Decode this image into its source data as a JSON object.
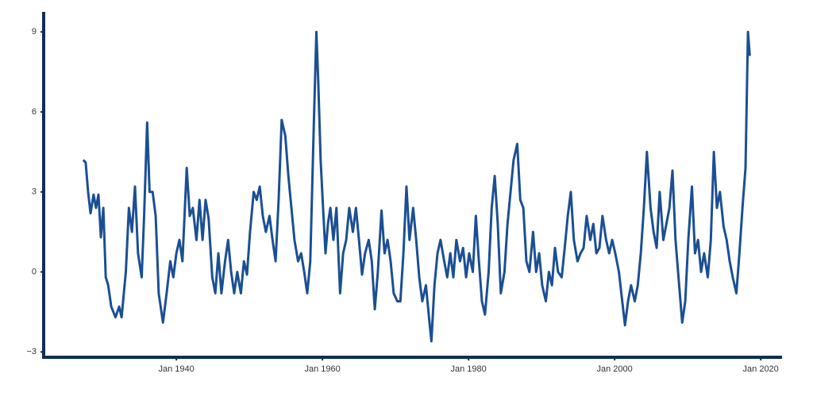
{
  "chart_data": {
    "type": "line",
    "x": [
      "1927-04",
      "1927-08",
      "1927-12",
      "1928-04",
      "1928-09",
      "1929-01",
      "1929-05",
      "1929-09",
      "1930-01",
      "1930-05",
      "1930-09",
      "1931-02",
      "1931-09",
      "1932-03",
      "1932-07",
      "1933-02",
      "1933-07",
      "1933-12",
      "1934-05",
      "1934-10",
      "1935-04",
      "1935-08",
      "1936-01",
      "1936-05",
      "1936-10",
      "1937-03",
      "1937-08",
      "1938-03",
      "1938-09",
      "1939-03",
      "1939-08",
      "1940-01",
      "1940-06",
      "1940-11",
      "1941-06",
      "1941-11",
      "1942-04",
      "1942-10",
      "1943-03",
      "1943-08",
      "1944-01",
      "1944-06",
      "1944-12",
      "1945-05",
      "1945-10",
      "1946-03",
      "1946-09",
      "1947-02",
      "1947-07",
      "1947-12",
      "1948-05",
      "1948-11",
      "1949-04",
      "1949-09",
      "1950-02",
      "1950-08",
      "1951-01",
      "1951-06",
      "1951-11",
      "1952-04",
      "1952-10",
      "1953-03",
      "1953-08",
      "1954-01",
      "1954-06",
      "1954-12",
      "1955-05",
      "1955-10",
      "1956-03",
      "1956-09",
      "1957-02",
      "1957-07",
      "1957-12",
      "1958-05",
      "1958-11",
      "1959-03",
      "1959-06",
      "1959-10",
      "1960-02",
      "1960-06",
      "1960-10",
      "1961-02",
      "1961-07",
      "1961-12",
      "1962-06",
      "1962-11",
      "1963-04",
      "1963-09",
      "1964-03",
      "1964-08",
      "1965-01",
      "1965-06",
      "1965-11",
      "1966-05",
      "1966-10",
      "1967-03",
      "1967-08",
      "1968-02",
      "1968-07",
      "1968-12",
      "1969-05",
      "1969-10",
      "1970-04",
      "1970-09",
      "1971-02",
      "1971-07",
      "1971-12",
      "1972-06",
      "1972-11",
      "1973-04",
      "1973-09",
      "1974-03",
      "1974-08",
      "1974-12",
      "1975-05",
      "1975-10",
      "1976-03",
      "1976-09",
      "1977-02",
      "1977-07",
      "1977-12",
      "1978-05",
      "1978-11",
      "1979-04",
      "1979-09",
      "1980-02",
      "1980-08",
      "1981-01",
      "1981-06",
      "1981-11",
      "1982-04",
      "1982-10",
      "1983-03",
      "1983-08",
      "1984-01",
      "1984-06",
      "1984-12",
      "1985-05",
      "1985-10",
      "1986-03",
      "1986-09",
      "1987-02",
      "1987-07",
      "1987-12",
      "1988-05",
      "1988-11",
      "1989-04",
      "1989-09",
      "1990-02",
      "1990-08",
      "1991-01",
      "1991-06",
      "1991-11",
      "1992-04",
      "1992-10",
      "1993-03",
      "1993-08",
      "1994-01",
      "1994-06",
      "1994-12",
      "1995-05",
      "1995-10",
      "1996-03",
      "1996-09",
      "1997-02",
      "1997-07",
      "1997-12",
      "1998-05",
      "1998-11",
      "1999-04",
      "1999-09",
      "2000-02",
      "2000-08",
      "2001-01",
      "2001-06",
      "2001-11",
      "2002-04",
      "2002-10",
      "2003-03",
      "2003-08",
      "2004-01",
      "2004-06",
      "2004-12",
      "2005-05",
      "2005-10",
      "2006-03",
      "2006-09",
      "2007-02",
      "2007-07",
      "2007-12",
      "2008-05",
      "2008-11",
      "2009-04",
      "2009-09",
      "2010-02",
      "2010-08",
      "2011-01",
      "2011-06",
      "2011-11",
      "2012-04",
      "2012-10",
      "2013-03",
      "2013-08",
      "2014-01",
      "2014-06",
      "2014-12",
      "2015-05",
      "2015-10",
      "2016-03",
      "2016-09",
      "2017-02",
      "2017-07",
      "2017-12",
      "2018-04",
      "2018-07"
    ],
    "series": [
      {
        "color": "#1b4f93",
        "values": [
          4.2,
          4.1,
          3.0,
          2.2,
          2.9,
          2.4,
          2.9,
          1.3,
          2.4,
          -0.2,
          -0.5,
          -1.3,
          -1.7,
          -1.3,
          -1.7,
          0,
          2.4,
          1.5,
          3.2,
          0.7,
          -0.2,
          2.1,
          5.6,
          3.0,
          3.0,
          2.1,
          -0.8,
          -1.9,
          -0.8,
          0.4,
          -0.2,
          0.7,
          1.2,
          0.4,
          3.9,
          2.1,
          2.4,
          1.2,
          2.7,
          1.2,
          2.7,
          2.0,
          -0.2,
          -0.8,
          0.7,
          -0.8,
          0.4,
          1.2,
          0,
          -0.8,
          0,
          -0.8,
          0.4,
          -0.1,
          1.5,
          3.0,
          2.7,
          3.2,
          2.1,
          1.5,
          2.1,
          1.2,
          0.4,
          2.7,
          5.7,
          5.1,
          3.6,
          2.4,
          1.2,
          0.4,
          0.7,
          0,
          -0.8,
          0.4,
          5.7,
          9.0,
          7.2,
          4.2,
          2.4,
          0.7,
          1.8,
          2.4,
          1.2,
          2.4,
          -0.8,
          0.7,
          1.2,
          2.4,
          1.5,
          2.4,
          1.2,
          -0.1,
          0.7,
          1.2,
          0.4,
          -1.4,
          0,
          2.3,
          0.7,
          1.2,
          0.4,
          -0.8,
          -1.1,
          -1.1,
          0.7,
          3.2,
          1.2,
          2.4,
          1.2,
          -0.2,
          -1.1,
          -0.5,
          -1.7,
          -2.6,
          -0.5,
          0.7,
          1.2,
          0.4,
          -0.2,
          0.7,
          -0.2,
          1.2,
          0.4,
          0.9,
          -0.2,
          0.7,
          0,
          2.1,
          0.4,
          -1.1,
          -1.6,
          0,
          2.4,
          3.6,
          1.8,
          -0.8,
          0,
          1.8,
          3.0,
          4.2,
          4.8,
          2.7,
          2.4,
          0.4,
          0,
          1.5,
          0,
          0.7,
          -0.5,
          -1.1,
          0,
          -0.5,
          0.9,
          0,
          -0.2,
          0.9,
          2.1,
          3.0,
          1.2,
          0.4,
          0.7,
          0.9,
          2.1,
          1.2,
          1.8,
          0.7,
          0.9,
          2.1,
          1.2,
          0.7,
          1.2,
          0.7,
          0,
          -1.0,
          -2.0,
          -1.1,
          -0.5,
          -1.1,
          -0.5,
          0.7,
          2.4,
          4.5,
          2.4,
          1.5,
          0.9,
          3.0,
          1.2,
          1.8,
          2.4,
          3.8,
          1.2,
          -0.5,
          -1.9,
          -1.1,
          1.2,
          3.2,
          0.7,
          1.2,
          0,
          0.7,
          -0.2,
          1.2,
          4.5,
          2.4,
          3.0,
          1.7,
          1.2,
          0.4,
          -0.2,
          -0.8,
          0.7,
          2.4,
          3.9,
          9.0,
          8.1
        ]
      }
    ],
    "xlim": [
      "1921-11",
      "2022-12"
    ],
    "xticks": [
      {
        "value": "1940-01",
        "label": "Jan 1940"
      },
      {
        "value": "1960-01",
        "label": "Jan 1960"
      },
      {
        "value": "1980-01",
        "label": "Jan 1980"
      },
      {
        "value": "2000-01",
        "label": "Jan 2000"
      },
      {
        "value": "2020-01",
        "label": "Jan 2020"
      }
    ],
    "ylim": [
      -3.2,
      9.75
    ],
    "yticks": [
      {
        "value": -3,
        "label": "−3"
      },
      0,
      3,
      6,
      9
    ],
    "axis_color": "#0e2f52"
  }
}
